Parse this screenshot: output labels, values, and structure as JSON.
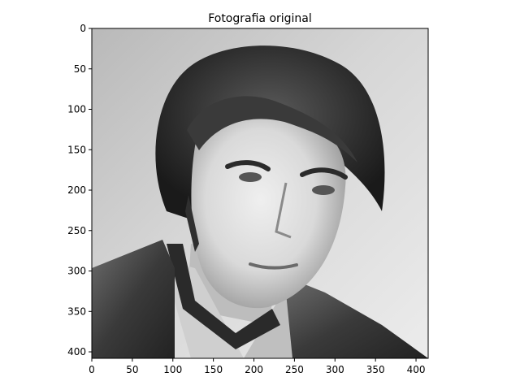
{
  "figure": {
    "title": "Fotografia original",
    "image": {
      "description_icon": "photo-icon",
      "colormap": "gray"
    },
    "x_axis": {
      "ticks": [
        0,
        50,
        100,
        150,
        200,
        250,
        300,
        350,
        400
      ],
      "range": [
        0,
        415
      ]
    },
    "y_axis": {
      "ticks": [
        0,
        50,
        100,
        150,
        200,
        250,
        300,
        350,
        400
      ],
      "range": [
        0,
        408
      ],
      "inverted": true
    },
    "colors": {
      "axes": "#000000",
      "background": "#ffffff"
    }
  }
}
